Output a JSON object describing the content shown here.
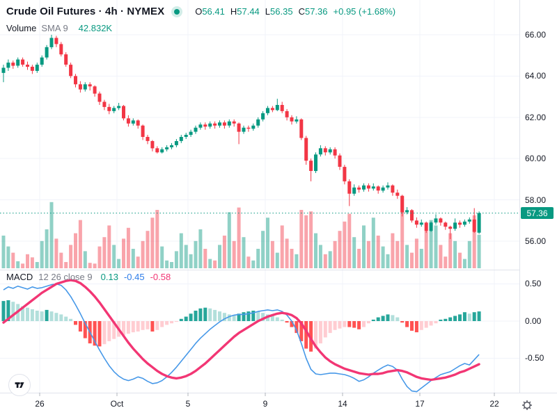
{
  "header": {
    "symbol_title": "Crude Oil Futures · 4h · NYMEX",
    "ohlc": {
      "o_label": "O",
      "o": "56.41",
      "h_label": "H",
      "h": "57.44",
      "l_label": "L",
      "l": "56.35",
      "c_label": "C",
      "c": "57.36",
      "change": "+0.95 (+1.68%)"
    },
    "volume_label": "Volume",
    "volume_sma_label": "SMA 9",
    "volume_value": "42.832K"
  },
  "macd_header": {
    "label": "MACD",
    "params": "12 26 close 9",
    "hist_value": "0.13",
    "macd_value": "-0.45",
    "signal_value": "-0.58"
  },
  "price_axis": {
    "labels": [
      "66.00",
      "64.00",
      "62.00",
      "60.00",
      "58.00",
      "56.00"
    ],
    "current": "57.36"
  },
  "macd_axis": {
    "labels": [
      "0.50",
      "0.00",
      "-0.50"
    ]
  },
  "time_axis": {
    "labels": [
      "26",
      "Oct",
      "5",
      "9",
      "14",
      "17",
      "22"
    ]
  },
  "colors": {
    "up": "#089981",
    "down": "#f23645",
    "volume_up": "rgba(8,153,129,0.45)",
    "volume_down": "rgba(242,54,69,0.45)",
    "hist_pos_grow": "#26a69a",
    "hist_pos_fall": "#b2dfdb",
    "hist_neg_fall": "#ff5252",
    "hist_neg_rise": "#ffcdd2",
    "macd_line": "#4698e8",
    "signal_line": "#f23674",
    "teal_text": "#089981",
    "blue_text": "#2e7de8",
    "pink_text": "#f23674",
    "dark_text": "#131722",
    "gray_text": "#787b86",
    "grid": "#f0f3fa",
    "axis_border": "#e0e3eb",
    "tick": "#b2b5be",
    "current_price_line": "#089981"
  },
  "chart_data": {
    "type": "candlestick",
    "title": "Crude Oil Futures · 4h · NYMEX",
    "panels": [
      "price+volume",
      "MACD(12,26,close,9)"
    ],
    "x_labels": [
      "26",
      "Oct",
      "5",
      "9",
      "14",
      "17",
      "22"
    ],
    "price_axis_ticks": [
      66.0,
      64.0,
      62.0,
      60.0,
      58.0,
      56.0
    ],
    "macd_axis_ticks": [
      0.5,
      0.0,
      -0.5
    ],
    "current_price": 57.36,
    "candles": [
      [
        64.15,
        64.55,
        63.7,
        64.4
      ],
      [
        64.4,
        64.8,
        64.25,
        64.65
      ],
      [
        64.65,
        64.75,
        64.35,
        64.5
      ],
      [
        64.5,
        64.9,
        64.4,
        64.8
      ],
      [
        64.8,
        64.9,
        64.45,
        64.55
      ],
      [
        64.55,
        64.7,
        64.3,
        64.45
      ],
      [
        64.45,
        64.55,
        64.1,
        64.25
      ],
      [
        64.25,
        64.65,
        64.15,
        64.55
      ],
      [
        64.55,
        65.0,
        64.45,
        64.9
      ],
      [
        64.9,
        65.5,
        64.8,
        65.4
      ],
      [
        65.4,
        66.0,
        65.3,
        65.85
      ],
      [
        65.85,
        65.95,
        65.4,
        65.55
      ],
      [
        65.55,
        65.65,
        64.95,
        65.05
      ],
      [
        65.05,
        65.15,
        64.45,
        64.55
      ],
      [
        64.55,
        64.65,
        63.9,
        64.0
      ],
      [
        64.0,
        64.1,
        63.45,
        63.6
      ],
      [
        63.6,
        63.75,
        63.2,
        63.35
      ],
      [
        63.35,
        63.7,
        63.25,
        63.6
      ],
      [
        63.6,
        63.7,
        63.3,
        63.5
      ],
      [
        63.5,
        63.55,
        63.0,
        63.15
      ],
      [
        63.15,
        63.25,
        62.6,
        62.75
      ],
      [
        62.75,
        62.85,
        62.35,
        62.5
      ],
      [
        62.5,
        62.65,
        62.15,
        62.3
      ],
      [
        62.3,
        62.55,
        62.2,
        62.45
      ],
      [
        62.45,
        62.7,
        62.35,
        62.55
      ],
      [
        62.55,
        62.6,
        61.85,
        61.95
      ],
      [
        61.95,
        62.1,
        61.55,
        61.7
      ],
      [
        61.7,
        61.95,
        61.6,
        61.85
      ],
      [
        61.85,
        61.9,
        61.45,
        61.6
      ],
      [
        61.6,
        61.65,
        60.9,
        61.05
      ],
      [
        61.05,
        61.15,
        60.7,
        60.85
      ],
      [
        60.85,
        60.9,
        60.35,
        60.5
      ],
      [
        60.5,
        60.6,
        60.25,
        60.3
      ],
      [
        60.3,
        60.55,
        60.25,
        60.45
      ],
      [
        60.45,
        60.65,
        60.35,
        60.55
      ],
      [
        60.55,
        60.75,
        60.45,
        60.65
      ],
      [
        60.65,
        60.95,
        60.55,
        60.85
      ],
      [
        60.85,
        61.15,
        60.75,
        61.05
      ],
      [
        61.05,
        61.25,
        60.95,
        61.15
      ],
      [
        61.15,
        61.4,
        61.05,
        61.3
      ],
      [
        61.3,
        61.6,
        61.2,
        61.5
      ],
      [
        61.5,
        61.75,
        61.4,
        61.65
      ],
      [
        61.65,
        61.75,
        61.4,
        61.55
      ],
      [
        61.55,
        61.8,
        61.45,
        61.7
      ],
      [
        61.7,
        61.8,
        61.45,
        61.6
      ],
      [
        61.6,
        61.85,
        61.5,
        61.75
      ],
      [
        61.75,
        61.85,
        61.45,
        61.6
      ],
      [
        61.6,
        61.9,
        61.5,
        61.8
      ],
      [
        61.8,
        61.9,
        61.55,
        61.7
      ],
      [
        61.7,
        61.75,
        60.7,
        61.3
      ],
      [
        61.3,
        61.6,
        61.2,
        61.5
      ],
      [
        61.5,
        61.6,
        61.3,
        61.45
      ],
      [
        61.45,
        61.7,
        61.35,
        61.6
      ],
      [
        61.6,
        62.0,
        61.5,
        61.9
      ],
      [
        61.9,
        62.3,
        61.8,
        62.2
      ],
      [
        62.2,
        62.55,
        62.1,
        62.45
      ],
      [
        62.45,
        62.55,
        62.25,
        62.35
      ],
      [
        62.35,
        62.9,
        62.3,
        62.6
      ],
      [
        62.6,
        62.75,
        62.2,
        62.3
      ],
      [
        62.3,
        62.4,
        61.85,
        62.0
      ],
      [
        62.0,
        62.1,
        61.65,
        61.8
      ],
      [
        61.8,
        62.05,
        61.7,
        61.9
      ],
      [
        61.9,
        61.95,
        60.9,
        61.0
      ],
      [
        61.0,
        61.1,
        59.7,
        59.9
      ],
      [
        59.9,
        60.0,
        58.9,
        59.4
      ],
      [
        59.4,
        60.3,
        59.3,
        60.2
      ],
      [
        60.2,
        60.65,
        60.1,
        60.5
      ],
      [
        60.5,
        60.6,
        60.15,
        60.3
      ],
      [
        60.3,
        60.55,
        60.2,
        60.45
      ],
      [
        60.45,
        60.55,
        60.0,
        60.15
      ],
      [
        60.15,
        60.25,
        59.45,
        59.6
      ],
      [
        59.6,
        59.7,
        58.75,
        58.9
      ],
      [
        58.9,
        59.0,
        57.7,
        58.3
      ],
      [
        58.3,
        58.75,
        58.2,
        58.6
      ],
      [
        58.6,
        58.7,
        58.35,
        58.5
      ],
      [
        58.5,
        58.8,
        58.4,
        58.7
      ],
      [
        58.7,
        58.8,
        58.4,
        58.55
      ],
      [
        58.55,
        58.8,
        58.45,
        58.65
      ],
      [
        58.65,
        58.7,
        58.3,
        58.45
      ],
      [
        58.45,
        58.7,
        58.35,
        58.6
      ],
      [
        58.6,
        58.85,
        58.5,
        58.7
      ],
      [
        58.7,
        58.75,
        58.2,
        58.35
      ],
      [
        58.35,
        58.5,
        58.05,
        58.2
      ],
      [
        58.2,
        58.25,
        57.2,
        57.4
      ],
      [
        57.4,
        57.65,
        57.3,
        57.5
      ],
      [
        57.5,
        57.55,
        56.9,
        57.0
      ],
      [
        57.0,
        57.15,
        56.65,
        56.8
      ],
      [
        56.8,
        57.05,
        56.7,
        56.9
      ],
      [
        56.9,
        56.95,
        56.4,
        56.5
      ],
      [
        56.5,
        56.95,
        56.45,
        56.9
      ],
      [
        56.9,
        57.3,
        56.8,
        57.1
      ],
      [
        57.1,
        57.15,
        56.75,
        56.9
      ],
      [
        56.9,
        56.95,
        56.55,
        56.7
      ],
      [
        56.7,
        56.75,
        56.1,
        56.6
      ],
      [
        56.6,
        57.1,
        56.5,
        56.9
      ],
      [
        56.9,
        57.0,
        56.65,
        56.8
      ],
      [
        56.8,
        57.05,
        56.7,
        56.95
      ],
      [
        56.95,
        57.15,
        56.85,
        57.05
      ],
      [
        57.05,
        57.6,
        56.4,
        56.45
      ],
      [
        56.41,
        57.44,
        56.35,
        57.36
      ]
    ],
    "volumes_k": [
      42,
      28,
      20,
      9,
      6,
      18,
      14,
      8,
      35,
      50,
      85,
      38,
      20,
      8,
      30,
      45,
      62,
      22,
      7,
      6,
      28,
      40,
      55,
      30,
      12,
      38,
      52,
      25,
      15,
      35,
      48,
      65,
      75,
      28,
      10,
      8,
      22,
      45,
      30,
      18,
      35,
      50,
      25,
      12,
      10,
      30,
      42,
      72,
      35,
      78,
      40,
      15,
      10,
      25,
      48,
      65,
      35,
      20,
      55,
      38,
      25,
      18,
      75,
      68,
      73,
      45,
      30,
      18,
      22,
      35,
      48,
      60,
      70,
      40,
      25,
      55,
      35,
      65,
      42,
      28,
      18,
      45,
      35,
      92,
      30,
      20,
      38,
      25,
      48,
      62,
      55,
      30,
      15,
      45,
      35,
      20,
      12,
      35,
      68,
      43
    ],
    "macd": {
      "histogram": [
        0.27,
        0.28,
        0.26,
        0.23,
        0.2,
        0.18,
        0.16,
        0.14,
        0.13,
        0.15,
        0.13,
        0.11,
        0.09,
        0.06,
        0.03,
        -0.05,
        -0.14,
        -0.23,
        -0.3,
        -0.33,
        -0.34,
        -0.31,
        -0.27,
        -0.24,
        -0.21,
        -0.19,
        -0.17,
        -0.15,
        -0.14,
        -0.12,
        -0.11,
        -0.14,
        -0.12,
        -0.08,
        -0.05,
        -0.03,
        -0.01,
        0.03,
        0.06,
        0.1,
        0.14,
        0.17,
        0.18,
        0.17,
        0.15,
        0.13,
        0.11,
        0.09,
        0.08,
        0.1,
        0.12,
        0.13,
        0.14,
        0.13,
        0.11,
        0.09,
        0.07,
        0.05,
        0.02,
        -0.02,
        -0.08,
        -0.16,
        -0.27,
        -0.37,
        -0.41,
        -0.37,
        -0.3,
        -0.22,
        -0.16,
        -0.12,
        -0.1,
        -0.08,
        -0.08,
        -0.09,
        -0.11,
        -0.08,
        -0.03,
        0.02,
        0.05,
        0.07,
        0.09,
        0.08,
        0.05,
        -0.02,
        -0.08,
        -0.13,
        -0.15,
        -0.12,
        -0.09,
        -0.06,
        -0.03,
        0.02,
        0.03,
        0.05,
        0.07,
        0.09,
        0.12,
        0.1,
        0.12,
        0.13
      ],
      "macd_line": [
        0.42,
        0.46,
        0.44,
        0.47,
        0.45,
        0.43,
        0.46,
        0.44,
        0.45,
        0.47,
        0.49,
        0.5,
        0.48,
        0.42,
        0.33,
        0.22,
        0.1,
        -0.03,
        -0.15,
        -0.27,
        -0.39,
        -0.5,
        -0.6,
        -0.68,
        -0.74,
        -0.78,
        -0.8,
        -0.78,
        -0.75,
        -0.77,
        -0.81,
        -0.84,
        -0.83,
        -0.8,
        -0.75,
        -0.69,
        -0.62,
        -0.54,
        -0.46,
        -0.38,
        -0.3,
        -0.23,
        -0.17,
        -0.11,
        -0.06,
        -0.01,
        0.03,
        0.06,
        0.08,
        0.09,
        0.09,
        0.1,
        0.11,
        0.13,
        0.14,
        0.15,
        0.14,
        0.15,
        0.13,
        0.08,
        0.0,
        -0.12,
        -0.3,
        -0.5,
        -0.65,
        -0.71,
        -0.72,
        -0.71,
        -0.7,
        -0.7,
        -0.71,
        -0.72,
        -0.74,
        -0.77,
        -0.81,
        -0.79,
        -0.75,
        -0.7,
        -0.66,
        -0.62,
        -0.59,
        -0.61,
        -0.66,
        -0.78,
        -0.88,
        -0.94,
        -0.95,
        -0.9,
        -0.85,
        -0.8,
        -0.76,
        -0.72,
        -0.7,
        -0.68,
        -0.64,
        -0.6,
        -0.57,
        -0.59,
        -0.52,
        -0.45
      ],
      "signal_line": [
        -0.02,
        0.03,
        0.08,
        0.13,
        0.18,
        0.23,
        0.28,
        0.33,
        0.38,
        0.42,
        0.46,
        0.5,
        0.52,
        0.54,
        0.55,
        0.54,
        0.51,
        0.46,
        0.4,
        0.33,
        0.25,
        0.16,
        0.07,
        -0.02,
        -0.11,
        -0.2,
        -0.29,
        -0.37,
        -0.44,
        -0.51,
        -0.57,
        -0.62,
        -0.67,
        -0.71,
        -0.74,
        -0.76,
        -0.77,
        -0.76,
        -0.74,
        -0.71,
        -0.67,
        -0.62,
        -0.57,
        -0.51,
        -0.45,
        -0.39,
        -0.33,
        -0.27,
        -0.21,
        -0.16,
        -0.12,
        -0.08,
        -0.04,
        0.0,
        0.03,
        0.06,
        0.08,
        0.1,
        0.11,
        0.1,
        0.08,
        0.04,
        -0.03,
        -0.13,
        -0.24,
        -0.34,
        -0.42,
        -0.49,
        -0.54,
        -0.58,
        -0.61,
        -0.64,
        -0.66,
        -0.68,
        -0.7,
        -0.71,
        -0.72,
        -0.71,
        -0.71,
        -0.7,
        -0.68,
        -0.67,
        -0.66,
        -0.67,
        -0.69,
        -0.72,
        -0.75,
        -0.77,
        -0.78,
        -0.79,
        -0.78,
        -0.77,
        -0.76,
        -0.74,
        -0.72,
        -0.69,
        -0.67,
        -0.64,
        -0.61,
        -0.58
      ]
    }
  }
}
